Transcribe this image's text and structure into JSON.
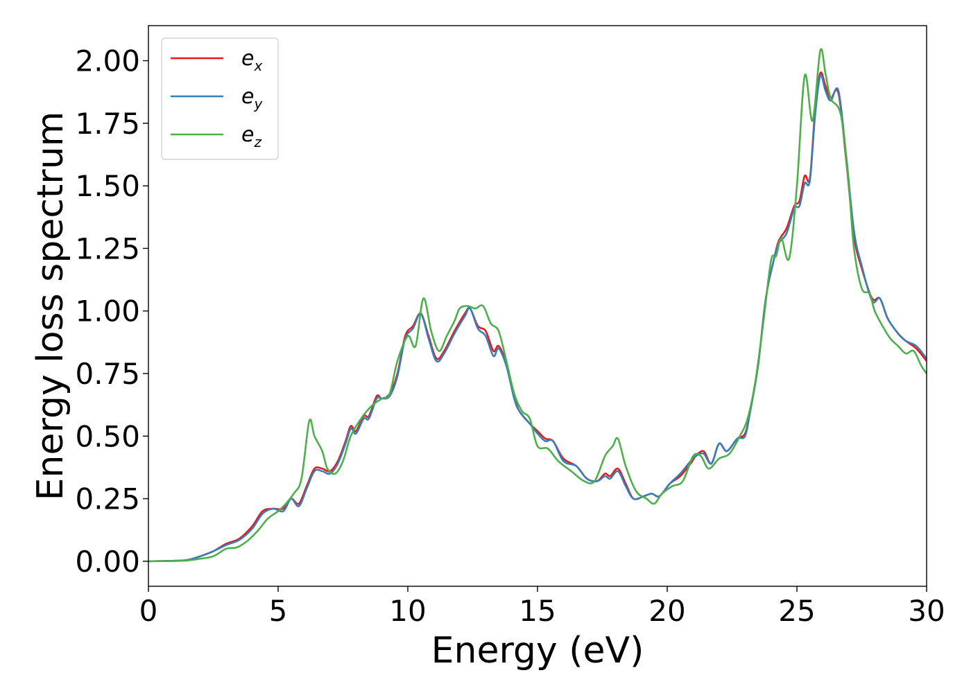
{
  "chart_data": {
    "type": "line",
    "title": "",
    "xlabel": "Energy (eV)",
    "ylabel": "Energy loss spectrum",
    "xlim": [
      0,
      30
    ],
    "ylim": [
      -0.1,
      2.14
    ],
    "x_ticks": [
      0,
      5,
      10,
      15,
      20,
      25,
      30
    ],
    "x_tick_labels": [
      "0",
      "5",
      "10",
      "15",
      "20",
      "25",
      "30"
    ],
    "y_ticks": [
      0.0,
      0.25,
      0.5,
      0.75,
      1.0,
      1.25,
      1.5,
      1.75,
      2.0
    ],
    "y_tick_labels": [
      "0.00",
      "0.25",
      "0.50",
      "0.75",
      "1.00",
      "1.25",
      "1.50",
      "1.75",
      "2.00"
    ],
    "grid": false,
    "legend_position": "top-left",
    "series": [
      {
        "name": "e_x",
        "label_base": "e",
        "label_sub": "x",
        "color": "#e41a1c",
        "points": [
          [
            0,
            0
          ],
          [
            1,
            0.002
          ],
          [
            1.5,
            0.005
          ],
          [
            2,
            0.02
          ],
          [
            2.5,
            0.04
          ],
          [
            3,
            0.07
          ],
          [
            3.5,
            0.09
          ],
          [
            4,
            0.14
          ],
          [
            4.4,
            0.2
          ],
          [
            4.8,
            0.21
          ],
          [
            5.2,
            0.21
          ],
          [
            5.5,
            0.25
          ],
          [
            5.8,
            0.23
          ],
          [
            6.1,
            0.3
          ],
          [
            6.4,
            0.37
          ],
          [
            6.7,
            0.37
          ],
          [
            7,
            0.36
          ],
          [
            7.3,
            0.4
          ],
          [
            7.6,
            0.48
          ],
          [
            7.8,
            0.54
          ],
          [
            8,
            0.52
          ],
          [
            8.3,
            0.58
          ],
          [
            8.5,
            0.58
          ],
          [
            8.8,
            0.66
          ],
          [
            9,
            0.65
          ],
          [
            9.3,
            0.67
          ],
          [
            9.6,
            0.75
          ],
          [
            9.9,
            0.9
          ],
          [
            10.2,
            0.94
          ],
          [
            10.5,
            0.99
          ],
          [
            10.8,
            0.9
          ],
          [
            11.1,
            0.81
          ],
          [
            11.4,
            0.84
          ],
          [
            11.8,
            0.92
          ],
          [
            12.2,
            0.99
          ],
          [
            12.4,
            1.01
          ],
          [
            12.7,
            0.94
          ],
          [
            13,
            0.92
          ],
          [
            13.3,
            0.84
          ],
          [
            13.5,
            0.86
          ],
          [
            13.8,
            0.79
          ],
          [
            14.1,
            0.66
          ],
          [
            14.3,
            0.6
          ],
          [
            14.7,
            0.55
          ],
          [
            15,
            0.52
          ],
          [
            15.3,
            0.49
          ],
          [
            15.6,
            0.48
          ],
          [
            16,
            0.41
          ],
          [
            16.5,
            0.38
          ],
          [
            16.9,
            0.33
          ],
          [
            17.3,
            0.32
          ],
          [
            17.6,
            0.35
          ],
          [
            17.8,
            0.34
          ],
          [
            18.1,
            0.37
          ],
          [
            18.4,
            0.31
          ],
          [
            18.7,
            0.25
          ],
          [
            19.1,
            0.26
          ],
          [
            19.4,
            0.27
          ],
          [
            19.7,
            0.26
          ],
          [
            20.1,
            0.31
          ],
          [
            20.5,
            0.34
          ],
          [
            20.9,
            0.39
          ],
          [
            21.1,
            0.42
          ],
          [
            21.4,
            0.44
          ],
          [
            21.7,
            0.39
          ],
          [
            22,
            0.47
          ],
          [
            22.3,
            0.44
          ],
          [
            22.7,
            0.49
          ],
          [
            23,
            0.51
          ],
          [
            23.2,
            0.6
          ],
          [
            23.5,
            0.78
          ],
          [
            23.8,
            1.05
          ],
          [
            24.1,
            1.2
          ],
          [
            24.3,
            1.28
          ],
          [
            24.6,
            1.33
          ],
          [
            24.9,
            1.42
          ],
          [
            25.1,
            1.44
          ],
          [
            25.3,
            1.54
          ],
          [
            25.5,
            1.53
          ],
          [
            25.7,
            1.8
          ],
          [
            25.9,
            1.95
          ],
          [
            26.1,
            1.9
          ],
          [
            26.3,
            1.85
          ],
          [
            26.6,
            1.87
          ],
          [
            26.9,
            1.6
          ],
          [
            27.2,
            1.3
          ],
          [
            27.5,
            1.17
          ],
          [
            27.9,
            1.05
          ],
          [
            28.2,
            1.05
          ],
          [
            28.5,
            0.97
          ],
          [
            28.9,
            0.91
          ],
          [
            29.2,
            0.88
          ],
          [
            29.6,
            0.85
          ],
          [
            30,
            0.8
          ]
        ]
      },
      {
        "name": "e_y",
        "label_base": "e",
        "label_sub": "y",
        "color": "#377eb8",
        "points": [
          [
            0,
            0
          ],
          [
            1,
            0.002
          ],
          [
            1.5,
            0.005
          ],
          [
            2,
            0.02
          ],
          [
            2.5,
            0.04
          ],
          [
            3,
            0.065
          ],
          [
            3.5,
            0.085
          ],
          [
            4,
            0.13
          ],
          [
            4.4,
            0.19
          ],
          [
            4.8,
            0.21
          ],
          [
            5.2,
            0.2
          ],
          [
            5.5,
            0.25
          ],
          [
            5.8,
            0.22
          ],
          [
            6.1,
            0.29
          ],
          [
            6.4,
            0.36
          ],
          [
            6.7,
            0.36
          ],
          [
            7,
            0.35
          ],
          [
            7.3,
            0.39
          ],
          [
            7.6,
            0.47
          ],
          [
            7.8,
            0.53
          ],
          [
            8,
            0.51
          ],
          [
            8.3,
            0.57
          ],
          [
            8.5,
            0.57
          ],
          [
            8.8,
            0.65
          ],
          [
            9,
            0.65
          ],
          [
            9.3,
            0.66
          ],
          [
            9.6,
            0.74
          ],
          [
            9.9,
            0.89
          ],
          [
            10.2,
            0.93
          ],
          [
            10.5,
            0.99
          ],
          [
            10.8,
            0.89
          ],
          [
            11.1,
            0.8
          ],
          [
            11.4,
            0.83
          ],
          [
            11.8,
            0.91
          ],
          [
            12.2,
            0.98
          ],
          [
            12.4,
            1.01
          ],
          [
            12.7,
            0.93
          ],
          [
            13,
            0.9
          ],
          [
            13.3,
            0.82
          ],
          [
            13.5,
            0.85
          ],
          [
            13.8,
            0.78
          ],
          [
            14.1,
            0.65
          ],
          [
            14.3,
            0.6
          ],
          [
            14.7,
            0.55
          ],
          [
            15,
            0.51
          ],
          [
            15.3,
            0.48
          ],
          [
            15.6,
            0.48
          ],
          [
            16,
            0.4
          ],
          [
            16.5,
            0.38
          ],
          [
            16.9,
            0.33
          ],
          [
            17.3,
            0.32
          ],
          [
            17.6,
            0.34
          ],
          [
            17.8,
            0.33
          ],
          [
            18.1,
            0.36
          ],
          [
            18.4,
            0.3
          ],
          [
            18.7,
            0.25
          ],
          [
            19.1,
            0.26
          ],
          [
            19.4,
            0.27
          ],
          [
            19.7,
            0.26
          ],
          [
            20.1,
            0.31
          ],
          [
            20.5,
            0.35
          ],
          [
            20.9,
            0.4
          ],
          [
            21.1,
            0.42
          ],
          [
            21.4,
            0.43
          ],
          [
            21.7,
            0.39
          ],
          [
            22,
            0.47
          ],
          [
            22.3,
            0.44
          ],
          [
            22.7,
            0.49
          ],
          [
            23,
            0.5
          ],
          [
            23.2,
            0.6
          ],
          [
            23.5,
            0.78
          ],
          [
            23.8,
            1.05
          ],
          [
            24.1,
            1.2
          ],
          [
            24.3,
            1.27
          ],
          [
            24.6,
            1.31
          ],
          [
            24.9,
            1.41
          ],
          [
            25.1,
            1.42
          ],
          [
            25.3,
            1.51
          ],
          [
            25.5,
            1.52
          ],
          [
            25.7,
            1.78
          ],
          [
            25.9,
            1.94
          ],
          [
            26.1,
            1.88
          ],
          [
            26.3,
            1.84
          ],
          [
            26.6,
            1.88
          ],
          [
            26.9,
            1.62
          ],
          [
            27.2,
            1.32
          ],
          [
            27.5,
            1.18
          ],
          [
            27.9,
            1.04
          ],
          [
            28.2,
            1.05
          ],
          [
            28.5,
            0.97
          ],
          [
            28.9,
            0.91
          ],
          [
            29.2,
            0.88
          ],
          [
            29.6,
            0.86
          ],
          [
            30,
            0.81
          ]
        ]
      },
      {
        "name": "e_z",
        "label_base": "e",
        "label_sub": "z",
        "color": "#4daf4a",
        "points": [
          [
            0,
            0
          ],
          [
            1,
            0.001
          ],
          [
            1.5,
            0.003
          ],
          [
            2,
            0.01
          ],
          [
            2.5,
            0.02
          ],
          [
            3,
            0.05
          ],
          [
            3.4,
            0.055
          ],
          [
            3.8,
            0.08
          ],
          [
            4.2,
            0.12
          ],
          [
            4.6,
            0.17
          ],
          [
            5,
            0.2
          ],
          [
            5.3,
            0.23
          ],
          [
            5.6,
            0.27
          ],
          [
            5.9,
            0.33
          ],
          [
            6.2,
            0.56
          ],
          [
            6.4,
            0.5
          ],
          [
            6.7,
            0.44
          ],
          [
            6.9,
            0.37
          ],
          [
            7.2,
            0.35
          ],
          [
            7.5,
            0.4
          ],
          [
            7.8,
            0.5
          ],
          [
            8.2,
            0.57
          ],
          [
            8.6,
            0.62
          ],
          [
            9,
            0.65
          ],
          [
            9.3,
            0.67
          ],
          [
            9.6,
            0.8
          ],
          [
            10,
            0.9
          ],
          [
            10.3,
            0.86
          ],
          [
            10.6,
            1.05
          ],
          [
            10.9,
            0.92
          ],
          [
            11.2,
            0.84
          ],
          [
            11.5,
            0.9
          ],
          [
            11.8,
            0.96
          ],
          [
            12,
            1.01
          ],
          [
            12.3,
            1.02
          ],
          [
            12.6,
            1.01
          ],
          [
            12.9,
            1.02
          ],
          [
            13.2,
            0.95
          ],
          [
            13.5,
            0.92
          ],
          [
            13.8,
            0.8
          ],
          [
            14.1,
            0.67
          ],
          [
            14.4,
            0.6
          ],
          [
            14.7,
            0.57
          ],
          [
            15,
            0.46
          ],
          [
            15.4,
            0.45
          ],
          [
            15.8,
            0.4
          ],
          [
            16.3,
            0.36
          ],
          [
            16.8,
            0.32
          ],
          [
            17.2,
            0.32
          ],
          [
            17.6,
            0.42
          ],
          [
            17.9,
            0.46
          ],
          [
            18.1,
            0.49
          ],
          [
            18.4,
            0.38
          ],
          [
            18.8,
            0.28
          ],
          [
            19.2,
            0.25
          ],
          [
            19.5,
            0.23
          ],
          [
            19.8,
            0.27
          ],
          [
            20.2,
            0.3
          ],
          [
            20.6,
            0.32
          ],
          [
            21,
            0.42
          ],
          [
            21.3,
            0.42
          ],
          [
            21.6,
            0.37
          ],
          [
            22,
            0.41
          ],
          [
            22.4,
            0.43
          ],
          [
            22.8,
            0.5
          ],
          [
            23.1,
            0.57
          ],
          [
            23.4,
            0.72
          ],
          [
            23.7,
            0.95
          ],
          [
            24,
            1.2
          ],
          [
            24.2,
            1.22
          ],
          [
            24.4,
            1.29
          ],
          [
            24.7,
            1.21
          ],
          [
            25,
            1.5
          ],
          [
            25.3,
            1.94
          ],
          [
            25.6,
            1.76
          ],
          [
            25.9,
            2.04
          ],
          [
            26.1,
            1.95
          ],
          [
            26.3,
            1.85
          ],
          [
            26.7,
            1.78
          ],
          [
            27,
            1.5
          ],
          [
            27.2,
            1.25
          ],
          [
            27.5,
            1.09
          ],
          [
            27.8,
            1.07
          ],
          [
            28,
            1.0
          ],
          [
            28.3,
            0.94
          ],
          [
            28.6,
            0.89
          ],
          [
            28.9,
            0.86
          ],
          [
            29.2,
            0.83
          ],
          [
            29.5,
            0.84
          ],
          [
            29.8,
            0.78
          ],
          [
            30,
            0.75
          ]
        ]
      }
    ]
  }
}
